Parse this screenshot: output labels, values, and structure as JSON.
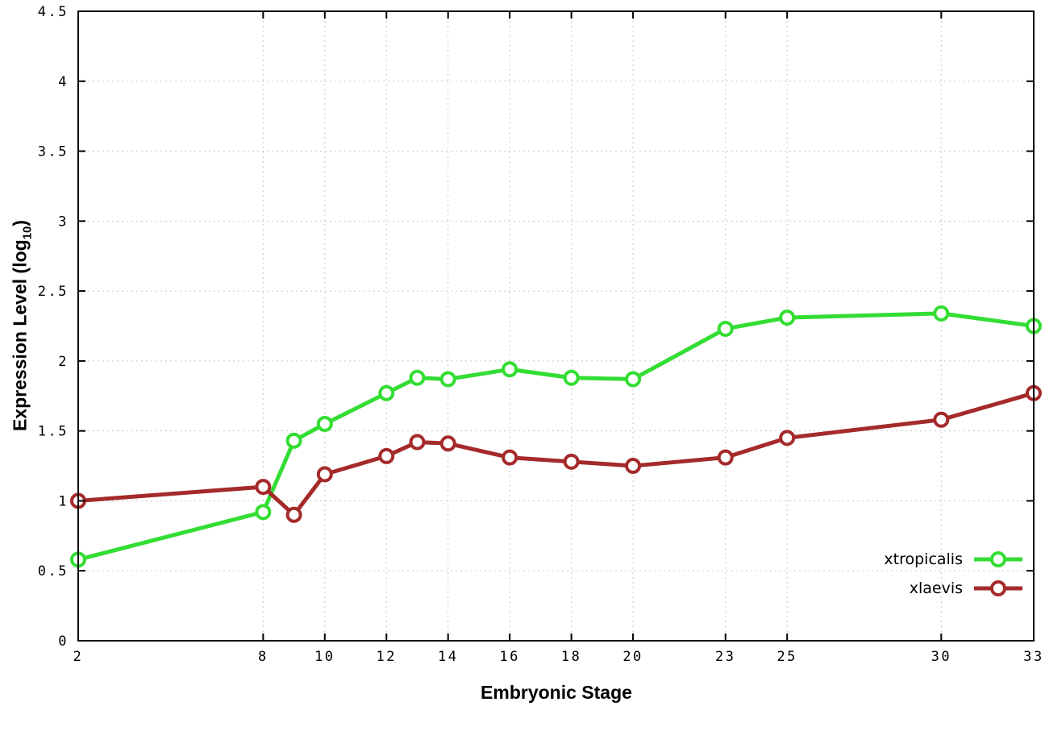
{
  "chart_data": {
    "type": "line",
    "title": "",
    "xlabel": "Embryonic Stage",
    "ylabel": {
      "main": "Expression Level (log",
      "sub": "10",
      "end": ")"
    },
    "x": [
      2,
      8,
      9,
      10,
      12,
      13,
      14,
      16,
      18,
      20,
      23,
      25,
      30,
      33
    ],
    "series": [
      {
        "name": "xtropicalis",
        "color": "#33dd33",
        "values": [
          0.58,
          0.92,
          1.43,
          1.55,
          1.77,
          1.88,
          1.87,
          1.94,
          1.88,
          1.87,
          2.23,
          2.31,
          2.34,
          2.25
        ]
      },
      {
        "name": "xlaevis",
        "color": "#a52a2a",
        "values": [
          1.0,
          1.1,
          0.9,
          1.19,
          1.32,
          1.42,
          1.41,
          1.31,
          1.28,
          1.25,
          1.31,
          1.45,
          1.58,
          1.77
        ]
      }
    ],
    "xlim": [
      2,
      33
    ],
    "ylim": [
      0,
      4.5
    ],
    "xticks": [
      2,
      8,
      10,
      12,
      14,
      16,
      18,
      20,
      23,
      25,
      30,
      33
    ],
    "xtick_labels": [
      "2",
      "8",
      "10",
      "12",
      "14",
      "16",
      "18",
      "20",
      "23",
      "25",
      "30",
      "33"
    ],
    "yticks": [
      0,
      0.5,
      1,
      1.5,
      2,
      2.5,
      3,
      3.5,
      4,
      4.5
    ],
    "ytick_labels": [
      "0",
      "0.5",
      "1",
      "1.5",
      "2",
      "2.5",
      "3",
      "3.5",
      "4",
      "4.5"
    ],
    "grid": true,
    "legend_position": "bottom-right"
  }
}
